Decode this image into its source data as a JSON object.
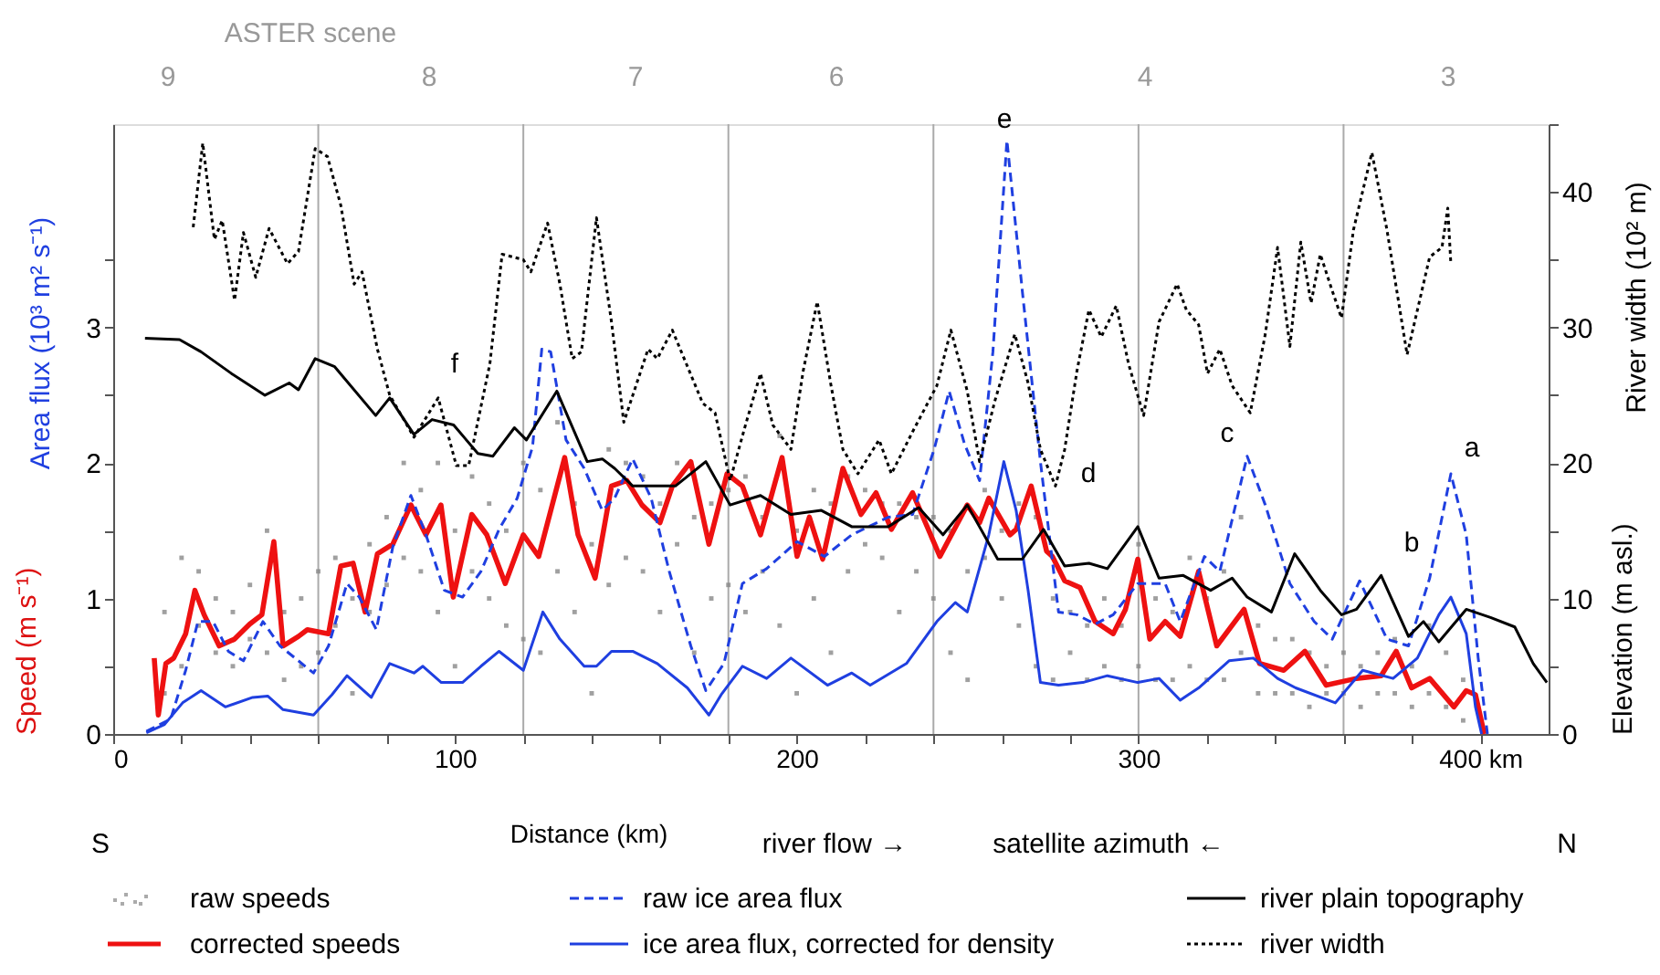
{
  "chart_data": {
    "type": "line",
    "xlabel": "Distance (km)",
    "ylabel": "Speed (m s⁻¹)",
    "y2label": "Elevation (m asl.)",
    "xlim": [
      0,
      420
    ],
    "xticks": [
      0,
      {
        "value": 20,
        "label": null
      },
      {
        "value": 40,
        "label": null
      },
      {
        "value": 60,
        "label": null
      },
      {
        "value": 80,
        "label": null
      },
      100,
      {
        "value": 120,
        "label": null
      },
      {
        "value": 140,
        "label": null
      },
      {
        "value": 160,
        "label": null
      },
      {
        "value": 180,
        "label": null
      },
      200,
      {
        "value": 220,
        "label": null
      },
      {
        "value": 240,
        "label": null
      },
      {
        "value": 260,
        "label": null
      },
      {
        "value": 280,
        "label": null
      },
      300,
      {
        "value": 320,
        "label": null
      },
      {
        "value": 340,
        "label": null
      },
      {
        "value": 360,
        "label": null
      },
      {
        "value": 380,
        "label": null
      },
      {
        "value": 400,
        "label": "400 km"
      }
    ],
    "ylim": [
      0,
      4.5
    ],
    "yticks": [
      0,
      {
        "value": 0.5,
        "label": null
      },
      1,
      {
        "value": 1.5,
        "label": null
      },
      2,
      {
        "value": 2.5,
        "label": null
      },
      3,
      {
        "value": 3.5,
        "label": null
      }
    ],
    "y2lim": [
      0,
      45
    ],
    "y2ticks": [
      0,
      {
        "value": 5,
        "label": null
      },
      10,
      {
        "value": 15,
        "label": null
      },
      20,
      {
        "value": 25,
        "label": null
      },
      30,
      {
        "value": 35,
        "label": null
      },
      40,
      {
        "value": 45,
        "label": null
      }
    ],
    "grid": false,
    "legend": "bottom",
    "ref_lines": [
      {
        "axis": "x",
        "value": 60,
        "color": "#aaaaaa"
      },
      {
        "axis": "x",
        "value": 120,
        "color": "#aaaaaa"
      },
      {
        "axis": "x",
        "value": 180,
        "color": "#aaaaaa"
      },
      {
        "axis": "x",
        "value": 240,
        "color": "#aaaaaa"
      },
      {
        "axis": "x",
        "value": 300,
        "color": "#aaaaaa"
      },
      {
        "axis": "x",
        "value": 360,
        "color": "#aaaaaa"
      }
    ],
    "annotations": [
      "a",
      "b",
      "c",
      "d",
      "e",
      "f",
      "S",
      "N",
      "river flow →",
      "satellite azimuth ←",
      "Area flux (10³ m² s⁻¹)",
      "River width (10² m)",
      "ASTER scene",
      "9",
      "8",
      "7",
      "6",
      "4",
      "3"
    ],
    "series": [
      {
        "name": "raw speeds",
        "type": "scatter",
        "color": "#888888",
        "x": [
          15,
          15,
          20,
          20,
          25,
          25,
          30,
          30,
          35,
          35,
          40,
          40,
          45,
          45,
          50,
          50,
          55,
          55,
          60,
          60,
          65,
          65,
          70,
          70,
          75,
          75,
          80,
          80,
          85,
          85,
          90,
          90,
          95,
          95,
          100,
          100,
          105,
          105,
          110,
          110,
          115,
          115,
          120,
          120,
          125,
          125,
          130,
          130,
          135,
          135,
          140,
          140,
          145,
          145,
          150,
          150,
          155,
          155,
          160,
          160,
          165,
          165,
          170,
          170,
          175,
          175,
          180,
          180,
          185,
          185,
          190,
          190,
          195,
          195,
          200,
          200,
          205,
          205,
          210,
          210,
          215,
          215,
          220,
          220,
          225,
          225,
          230,
          230,
          235,
          235,
          240,
          240,
          245,
          245,
          250,
          250,
          255,
          255,
          260,
          260,
          265,
          265,
          270,
          270,
          275,
          275,
          280,
          280,
          285,
          285,
          290,
          290,
          295,
          295,
          300,
          300,
          305,
          305,
          310,
          310,
          315,
          315,
          320,
          320,
          325,
          325,
          330,
          330,
          335,
          335,
          340,
          340,
          345,
          345,
          350,
          350,
          355,
          355,
          360,
          360,
          365,
          365,
          370,
          370,
          375,
          375,
          380,
          380,
          385,
          385,
          390,
          390,
          395,
          395
        ],
        "values": [
          0.3,
          0.9,
          0.5,
          1.3,
          0.8,
          1.2,
          0.6,
          1.0,
          0.5,
          0.9,
          0.7,
          1.1,
          0.6,
          1.5,
          0.4,
          0.9,
          0.5,
          1.0,
          0.6,
          1.2,
          0.8,
          1.3,
          0.3,
          1.0,
          0.9,
          1.4,
          1.1,
          1.6,
          1.3,
          2.0,
          1.2,
          1.8,
          0.9,
          2.0,
          0.5,
          1.5,
          1.2,
          1.9,
          1.0,
          1.7,
          0.8,
          1.5,
          0.7,
          2.0,
          0.6,
          1.8,
          1.2,
          2.3,
          0.9,
          1.7,
          0.3,
          1.4,
          1.1,
          2.1,
          1.3,
          2.0,
          1.2,
          1.9,
          0.9,
          1.7,
          1.4,
          2.0,
          0.6,
          1.6,
          1.0,
          1.7,
          1.1,
          1.8,
          0.9,
          1.9,
          1.2,
          1.6,
          0.8,
          2.2,
          0.3,
          1.5,
          1.0,
          1.8,
          0.6,
          1.7,
          1.2,
          1.9,
          1.4,
          1.8,
          1.3,
          1.7,
          0.9,
          1.7,
          1.2,
          1.6,
          1.0,
          1.6,
          0.6,
          1.5,
          0.4,
          1.2,
          1.3,
          1.8,
          1.0,
          1.5,
          0.8,
          1.7,
          0.5,
          1.6,
          0.4,
          1.0,
          0.6,
          0.9,
          0.4,
          0.8,
          0.5,
          1.0,
          0.4,
          0.8,
          0.5,
          1.4,
          0.4,
          1.0,
          0.4,
          0.9,
          0.5,
          1.3,
          0.4,
          1.0,
          0.4,
          1.2,
          0.6,
          1.6,
          0.3,
          0.8,
          0.3,
          0.7,
          0.3,
          0.7,
          0.2,
          0.6,
          0.3,
          0.5,
          0.3,
          0.6,
          0.2,
          0.5,
          0.3,
          0.6,
          0.3,
          0.7,
          0.2,
          0.5,
          0.3,
          0.8,
          0.2,
          0.6,
          0.1,
          0.4
        ]
      },
      {
        "name": "corrected speeds",
        "line_style": "solid",
        "color": "#ee1111",
        "x": [
          12,
          13.2,
          15.4,
          17.7,
          21.2,
          23.9,
          26.6,
          31,
          35.5,
          39.9,
          43.5,
          47,
          49.7,
          54.2,
          56.8,
          63,
          66.6,
          70.2,
          73.7,
          77.3,
          81.8,
          87.1,
          91.5,
          95.9,
          99.5,
          104.9,
          109.3,
          114.7,
          120,
          124.5,
          132.1,
          136,
          141,
          145.8,
          150.3,
          154.7,
          160,
          163.6,
          169,
          174.3,
          179.6,
          184.1,
          189.4,
          195.7,
          200.1,
          203.7,
          207.6,
          213.5,
          218.8,
          223.2,
          227.7,
          233.9,
          241.9,
          249.9,
          253.5,
          256.2,
          262.4,
          264.2,
          268.6,
          273.1,
          274.8,
          278.4,
          282.9,
          287.3,
          292.6,
          296.2,
          299.8,
          303.3,
          307.8,
          312.2,
          317.6,
          322.9,
          330.9,
          335.4,
          342.5,
          348.7,
          354.9,
          363.8,
          371,
          375.4,
          379.9,
          385.2,
          392.3,
          395.9,
          398.6,
          401.2
        ],
        "values": [
          0.56,
          0.14,
          0.52,
          0.56,
          0.74,
          1.06,
          0.88,
          0.65,
          0.7,
          0.81,
          0.88,
          1.42,
          0.65,
          0.72,
          0.77,
          0.74,
          1.24,
          1.26,
          0.9,
          1.33,
          1.4,
          1.69,
          1.47,
          1.69,
          1.01,
          1.62,
          1.47,
          1.11,
          1.47,
          1.31,
          2.04,
          1.47,
          1.15,
          1.83,
          1.87,
          1.69,
          1.56,
          1.83,
          2.01,
          1.4,
          1.92,
          1.83,
          1.47,
          2.04,
          1.31,
          1.6,
          1.29,
          1.96,
          1.62,
          1.78,
          1.51,
          1.78,
          1.31,
          1.69,
          1.56,
          1.74,
          1.47,
          1.51,
          1.83,
          1.35,
          1.31,
          1.13,
          1.08,
          0.83,
          0.74,
          0.92,
          1.29,
          0.7,
          0.83,
          0.72,
          1.2,
          0.65,
          0.92,
          0.52,
          0.47,
          0.61,
          0.36,
          0.41,
          0.43,
          0.61,
          0.34,
          0.41,
          0.2,
          0.32,
          0.29,
          0
        ]
      },
      {
        "name": "raw ice area flux",
        "line_style": "dashed",
        "color": "#1f3fe0",
        "x": [
          9.7,
          16.8,
          21.2,
          24.8,
          29.2,
          33.7,
          38.1,
          43.8,
          48.8,
          58.6,
          63,
          68.4,
          72,
          77,
          81.8,
          87.1,
          91.5,
          96.9,
          102.2,
          107.6,
          112.9,
          118.2,
          122.7,
          125.4,
          128,
          132.5,
          137.8,
          143.1,
          146.7,
          152,
          157.4,
          162.7,
          169,
          173.4,
          178.7,
          184.1,
          191.2,
          200.1,
          208.1,
          216.1,
          226.8,
          233.9,
          240.2,
          244.6,
          249.1,
          253.5,
          257.4,
          261.5,
          266,
          271.3,
          276.6,
          282,
          287.3,
          292.6,
          299.8,
          307.8,
          312.2,
          319.3,
          323.8,
          331.8,
          337.1,
          344.3,
          351.4,
          356.7,
          364.7,
          372.7,
          379,
          385.2,
          391.4,
          395.9,
          399.4,
          402.1
        ],
        "values": [
          0.02,
          0.11,
          0.47,
          0.83,
          0.83,
          0.61,
          0.54,
          0.83,
          0.65,
          0.45,
          0.65,
          1.11,
          1.01,
          0.77,
          1.38,
          1.76,
          1.47,
          1.06,
          1.01,
          1.2,
          1.51,
          1.74,
          2.12,
          2.84,
          2.82,
          2.17,
          1.96,
          1.65,
          1.74,
          2.03,
          1.74,
          1.2,
          0.65,
          0.32,
          0.52,
          1.11,
          1.22,
          1.42,
          1.31,
          1.47,
          1.6,
          1.62,
          2.1,
          2.53,
          2.14,
          1.87,
          2.82,
          4.38,
          3.27,
          2.01,
          0.9,
          0.88,
          0.81,
          0.88,
          1.11,
          1.11,
          0.83,
          1.31,
          1.2,
          2.05,
          1.69,
          1.11,
          0.83,
          0.7,
          1.13,
          0.7,
          0.65,
          1.15,
          1.92,
          1.47,
          0.56,
          0
        ]
      },
      {
        "name": "ice area flux, corrected for density",
        "line_style": "solid",
        "color": "#1f3fe0",
        "x": [
          9.7,
          15,
          20.3,
          25.7,
          32.8,
          40.8,
          45.2,
          49.7,
          58.6,
          64,
          68.4,
          75.5,
          80.9,
          88,
          90.6,
          96,
          102.2,
          107.6,
          112.9,
          120,
          125.7,
          130.7,
          137.8,
          141.4,
          145.8,
          152,
          159.2,
          168,
          174.3,
          177.9,
          184.1,
          191.2,
          198.3,
          209,
          216.1,
          221.5,
          232.1,
          241,
          246.4,
          249.9,
          256.2,
          260.6,
          264.2,
          267.7,
          271.3,
          276.6,
          283.7,
          290.9,
          299.8,
          306,
          312.2,
          317.6,
          326.5,
          333.6,
          340.7,
          346,
          357.6,
          365.6,
          374.5,
          381.6,
          387.9,
          391.4,
          395.9,
          398.6,
          400.4
        ],
        "values": [
          0.01,
          0.07,
          0.23,
          0.32,
          0.2,
          0.27,
          0.28,
          0.18,
          0.14,
          0.29,
          0.43,
          0.27,
          0.52,
          0.45,
          0.5,
          0.38,
          0.38,
          0.5,
          0.61,
          0.47,
          0.9,
          0.7,
          0.5,
          0.5,
          0.61,
          0.61,
          0.52,
          0.34,
          0.14,
          0.29,
          0.5,
          0.41,
          0.56,
          0.36,
          0.45,
          0.36,
          0.52,
          0.83,
          0.97,
          0.9,
          1.47,
          2.01,
          1.65,
          1.06,
          0.38,
          0.36,
          0.38,
          0.43,
          0.38,
          0.41,
          0.25,
          0.34,
          0.54,
          0.56,
          0.41,
          0.34,
          0.23,
          0.47,
          0.41,
          0.56,
          0.88,
          1.01,
          0.74,
          0.2,
          0
        ]
      },
      {
        "name": "river plain topography",
        "axis": "y2",
        "line_style": "solid",
        "color": "#000000",
        "x": [
          9.3,
          19.4,
          25.7,
          34.6,
          44.4,
          51.5,
          54.2,
          59.1,
          64.8,
          76.8,
          80.9,
          88,
          93.3,
          99.6,
          106.7,
          111.1,
          117.4,
          120.9,
          129.8,
          138.7,
          143.1,
          146.7,
          152,
          164.5,
          173.4,
          180.5,
          189.4,
          198.3,
          207.2,
          216.1,
          226.8,
          235.7,
          242.8,
          249.9,
          258.8,
          266,
          272.2,
          278.4,
          285.5,
          290.9,
          299.8,
          306,
          313.1,
          321.1,
          327.4,
          331.8,
          338.9,
          345.7,
          353.2,
          359.4,
          363.8,
          371,
          379,
          383.4,
          387.9,
          395.9,
          403,
          410.1,
          415.5,
          419.5
        ],
        "values": [
          29.2,
          29.1,
          28.2,
          26.6,
          25.0,
          25.9,
          25.4,
          27.7,
          27.1,
          23.5,
          24.8,
          22.1,
          23.2,
          22.8,
          20.7,
          20.5,
          22.6,
          21.7,
          25.3,
          20.1,
          20.3,
          19.6,
          18.3,
          18.3,
          20.1,
          16.9,
          17.6,
          16.2,
          16.5,
          15.3,
          15.3,
          16.7,
          14.7,
          16.9,
          12.9,
          12.9,
          15.1,
          12.4,
          12.6,
          12.2,
          15.3,
          11.5,
          11.7,
          10.6,
          11.5,
          10.1,
          9.0,
          13.3,
          10.6,
          8.8,
          9.2,
          11.7,
          7.2,
          8.3,
          6.8,
          9.2,
          8.6,
          7.9,
          5.2,
          3.8
        ]
      },
      {
        "name": "river width",
        "axis": "y2",
        "line_style": "dotted",
        "color": "#000000",
        "x": [
          23.4,
          26.2,
          29.6,
          31.9,
          35.5,
          38.1,
          41.7,
          45.6,
          51,
          54.2,
          59.1,
          62.7,
          66.6,
          70.5,
          72.8,
          77.3,
          80.9,
          88,
          95.1,
          100.4,
          104,
          110.2,
          113.8,
          120,
          122.2,
          127.1,
          130.7,
          134.3,
          137,
          141.4,
          145.8,
          149.4,
          156.5,
          159.2,
          163.6,
          172.5,
          176.1,
          180.5,
          185,
          189.4,
          193,
          198.3,
          201.9,
          206,
          209.9,
          213.5,
          217.9,
          224.1,
          227.7,
          233.9,
          241,
          245.1,
          249.9,
          253.5,
          258,
          263.8,
          267.7,
          271.3,
          275.7,
          278.4,
          282,
          285.5,
          289.1,
          293.5,
          297.1,
          301.5,
          306,
          311.3,
          314,
          317.6,
          320.2,
          323.8,
          327.4,
          332.7,
          337.1,
          340.7,
          344.3,
          347.5,
          350.5,
          353.2,
          356.7,
          359.4,
          362.9,
          368.3,
          372.7,
          378.6,
          385.2,
          388.8,
          390.5,
          391.4
        ],
        "values": [
          37.4,
          43.6,
          36.5,
          37.9,
          32.0,
          37.0,
          33.7,
          37.3,
          34.7,
          35.6,
          43.2,
          42.6,
          39.0,
          33.2,
          34.1,
          28.4,
          25.0,
          21.9,
          24.8,
          19.8,
          19.8,
          27.3,
          35.4,
          35.0,
          34.1,
          37.7,
          33.2,
          27.7,
          28.2,
          38.1,
          30.4,
          23.0,
          28.4,
          27.7,
          29.8,
          24.4,
          23.7,
          18.7,
          22.8,
          26.6,
          22.8,
          21.0,
          26.8,
          31.9,
          25.9,
          21.0,
          19.2,
          21.7,
          19.2,
          22.3,
          25.7,
          29.8,
          25.3,
          20.1,
          24.6,
          29.5,
          25.9,
          21.0,
          18.3,
          21.0,
          26.8,
          31.3,
          29.3,
          31.6,
          27.3,
          23.5,
          30.4,
          33.2,
          31.3,
          30.2,
          26.6,
          28.4,
          25.7,
          23.7,
          29.5,
          35.9,
          28.6,
          36.3,
          31.8,
          35.4,
          32.7,
          30.7,
          37.2,
          42.9,
          37.2,
          28.0,
          35.2,
          35.9,
          38.8,
          34.7
        ]
      }
    ]
  }
}
